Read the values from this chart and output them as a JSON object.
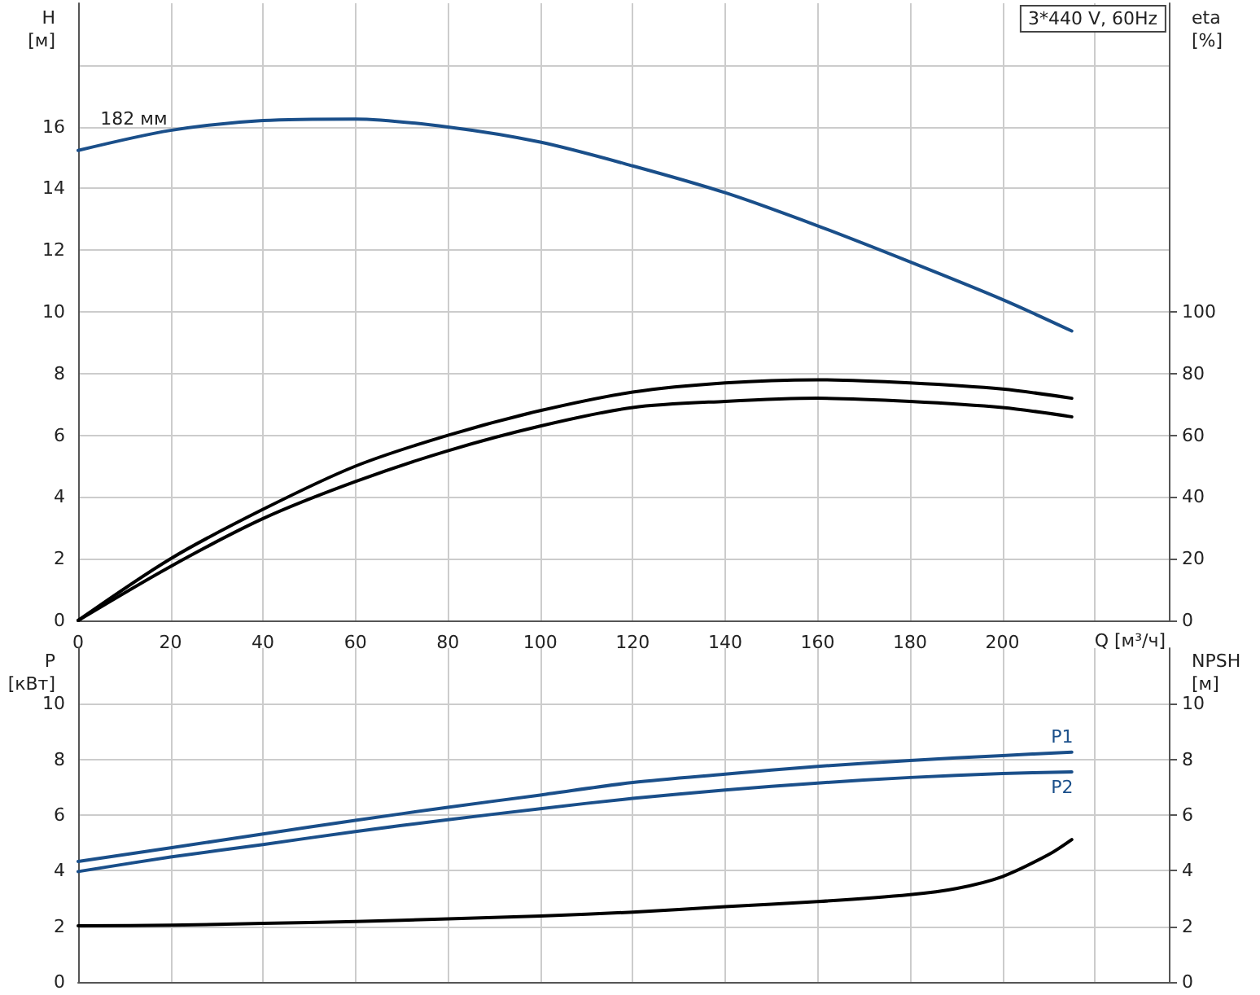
{
  "chart_data": [
    {
      "type": "line",
      "title": "3*440 V, 60Hz",
      "xlabel": "Q [м³/ч]",
      "ylabel": "H\n[м]",
      "y2label": "eta\n[%]",
      "xlim": [
        0,
        236
      ],
      "xticks": [
        0,
        20,
        40,
        60,
        80,
        100,
        120,
        140,
        160,
        180,
        200,
        {
          "value": 220,
          "label": null
        }
      ],
      "ylim": [
        0,
        20
      ],
      "yticks": [
        0,
        2,
        4,
        6,
        8,
        10,
        12,
        14,
        16,
        {
          "value": 18,
          "label": null
        }
      ],
      "y2lim": [
        0,
        200
      ],
      "y2ticks": [
        0,
        20,
        40,
        60,
        80,
        100
      ],
      "grid": true,
      "marker": "none",
      "line_style": "solid",
      "legend": false,
      "series": [
        {
          "name": "182 мм",
          "color": "#1a4f8a",
          "x": [
            0,
            20,
            40,
            60,
            80,
            100,
            120,
            140,
            160,
            180,
            200,
            215
          ],
          "values": [
            15.23,
            15.88,
            16.2,
            16.25,
            15.99,
            15.5,
            14.73,
            13.86,
            12.79,
            11.62,
            10.4,
            9.38
          ]
        },
        {
          "color": "#000000",
          "axis": "y2",
          "x": [
            0,
            20,
            40,
            60,
            80,
            100,
            120,
            140,
            160,
            180,
            200,
            215
          ],
          "values": [
            0,
            20,
            36,
            50,
            60,
            68,
            74,
            77,
            78,
            77,
            75,
            72
          ]
        },
        {
          "color": "#000000",
          "axis": "y2",
          "x": [
            0,
            20,
            40,
            60,
            80,
            100,
            120,
            140,
            160,
            180,
            200,
            215
          ],
          "values": [
            0,
            17.5,
            33,
            45,
            55,
            63,
            69,
            71,
            72,
            71,
            69,
            66
          ]
        }
      ]
    },
    {
      "type": "line",
      "ylabel": "P\n[кВт]",
      "y2label": "NPSH\n[м]",
      "tick_labels": "y",
      "xlim": [
        0,
        236
      ],
      "xticks": [
        0,
        20,
        40,
        60,
        80,
        100,
        120,
        140,
        160,
        180,
        200,
        220
      ],
      "ylim": [
        0,
        12
      ],
      "yticks": [
        0,
        2,
        4,
        6,
        8,
        10
      ],
      "y2lim": [
        0,
        12
      ],
      "y2ticks": [
        0,
        2,
        4,
        6,
        8,
        10
      ],
      "grid": true,
      "marker": "none",
      "line_style": "solid",
      "legend": false,
      "series": [
        {
          "name": "P1",
          "color": "#1a4f8a",
          "x": [
            0,
            20,
            40,
            60,
            80,
            100,
            120,
            140,
            160,
            180,
            200,
            215
          ],
          "values": [
            4.33,
            4.82,
            5.32,
            5.81,
            6.28,
            6.72,
            7.17,
            7.47,
            7.75,
            7.96,
            8.14,
            8.26
          ]
        },
        {
          "name": "P2",
          "color": "#1a4f8a",
          "x": [
            0,
            20,
            40,
            60,
            80,
            100,
            120,
            140,
            160,
            180,
            200,
            215
          ],
          "values": [
            3.97,
            4.49,
            4.94,
            5.41,
            5.83,
            6.23,
            6.6,
            6.9,
            7.15,
            7.35,
            7.49,
            7.55
          ]
        },
        {
          "color": "#000000",
          "axis": "y2",
          "x": [
            0,
            20,
            40,
            60,
            80,
            100,
            120,
            140,
            160,
            180,
            190,
            200,
            210,
            215
          ],
          "values": [
            2.02,
            2.04,
            2.11,
            2.17,
            2.27,
            2.37,
            2.51,
            2.71,
            2.89,
            3.14,
            3.36,
            3.79,
            4.58,
            5.12
          ]
        }
      ]
    }
  ]
}
